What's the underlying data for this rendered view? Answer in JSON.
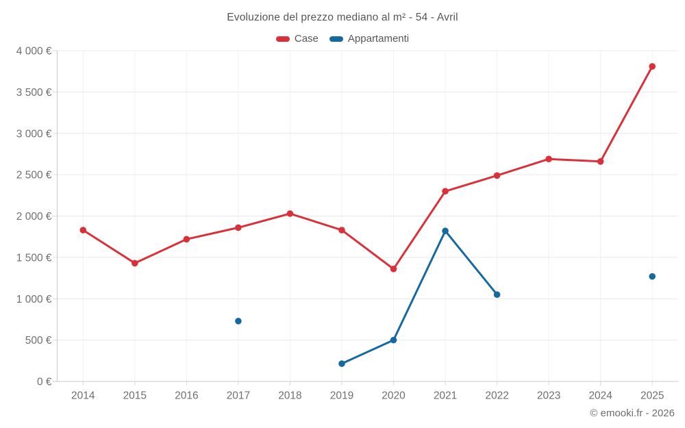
{
  "footer": {
    "copyright": "© emooki.fr - 2026"
  },
  "chart_data": {
    "type": "line",
    "title": "Evoluzione del prezzo mediano al m² - 54 - Avril",
    "categories": [
      "2014",
      "2015",
      "2016",
      "2017",
      "2018",
      "2019",
      "2020",
      "2021",
      "2022",
      "2023",
      "2024",
      "2025"
    ],
    "series": [
      {
        "name": "Case",
        "color": "#d93039",
        "values": [
          1830,
          1430,
          1720,
          1860,
          2030,
          1830,
          1360,
          2300,
          2490,
          2690,
          2660,
          3810
        ]
      },
      {
        "name": "Appartamenti",
        "color": "#16699f",
        "values": [
          null,
          null,
          null,
          730,
          null,
          215,
          500,
          1820,
          1050,
          null,
          null,
          1270
        ]
      }
    ],
    "xlabel": "",
    "ylabel": "",
    "ylim": [
      0,
      4000
    ],
    "y_ticks": [
      {
        "value": 0,
        "label": "0 €"
      },
      {
        "value": 500,
        "label": "500 €"
      },
      {
        "value": 1000,
        "label": "1 000 €"
      },
      {
        "value": 1500,
        "label": "1 500 €"
      },
      {
        "value": 2000,
        "label": "2 000 €"
      },
      {
        "value": 2500,
        "label": "2 500 €"
      },
      {
        "value": 3000,
        "label": "3 000 €"
      },
      {
        "value": 3500,
        "label": "3 500 €"
      },
      {
        "value": 4000,
        "label": "4 000 €"
      }
    ],
    "grid": true,
    "legend_position": "top",
    "marker_radius": 4.8
  }
}
